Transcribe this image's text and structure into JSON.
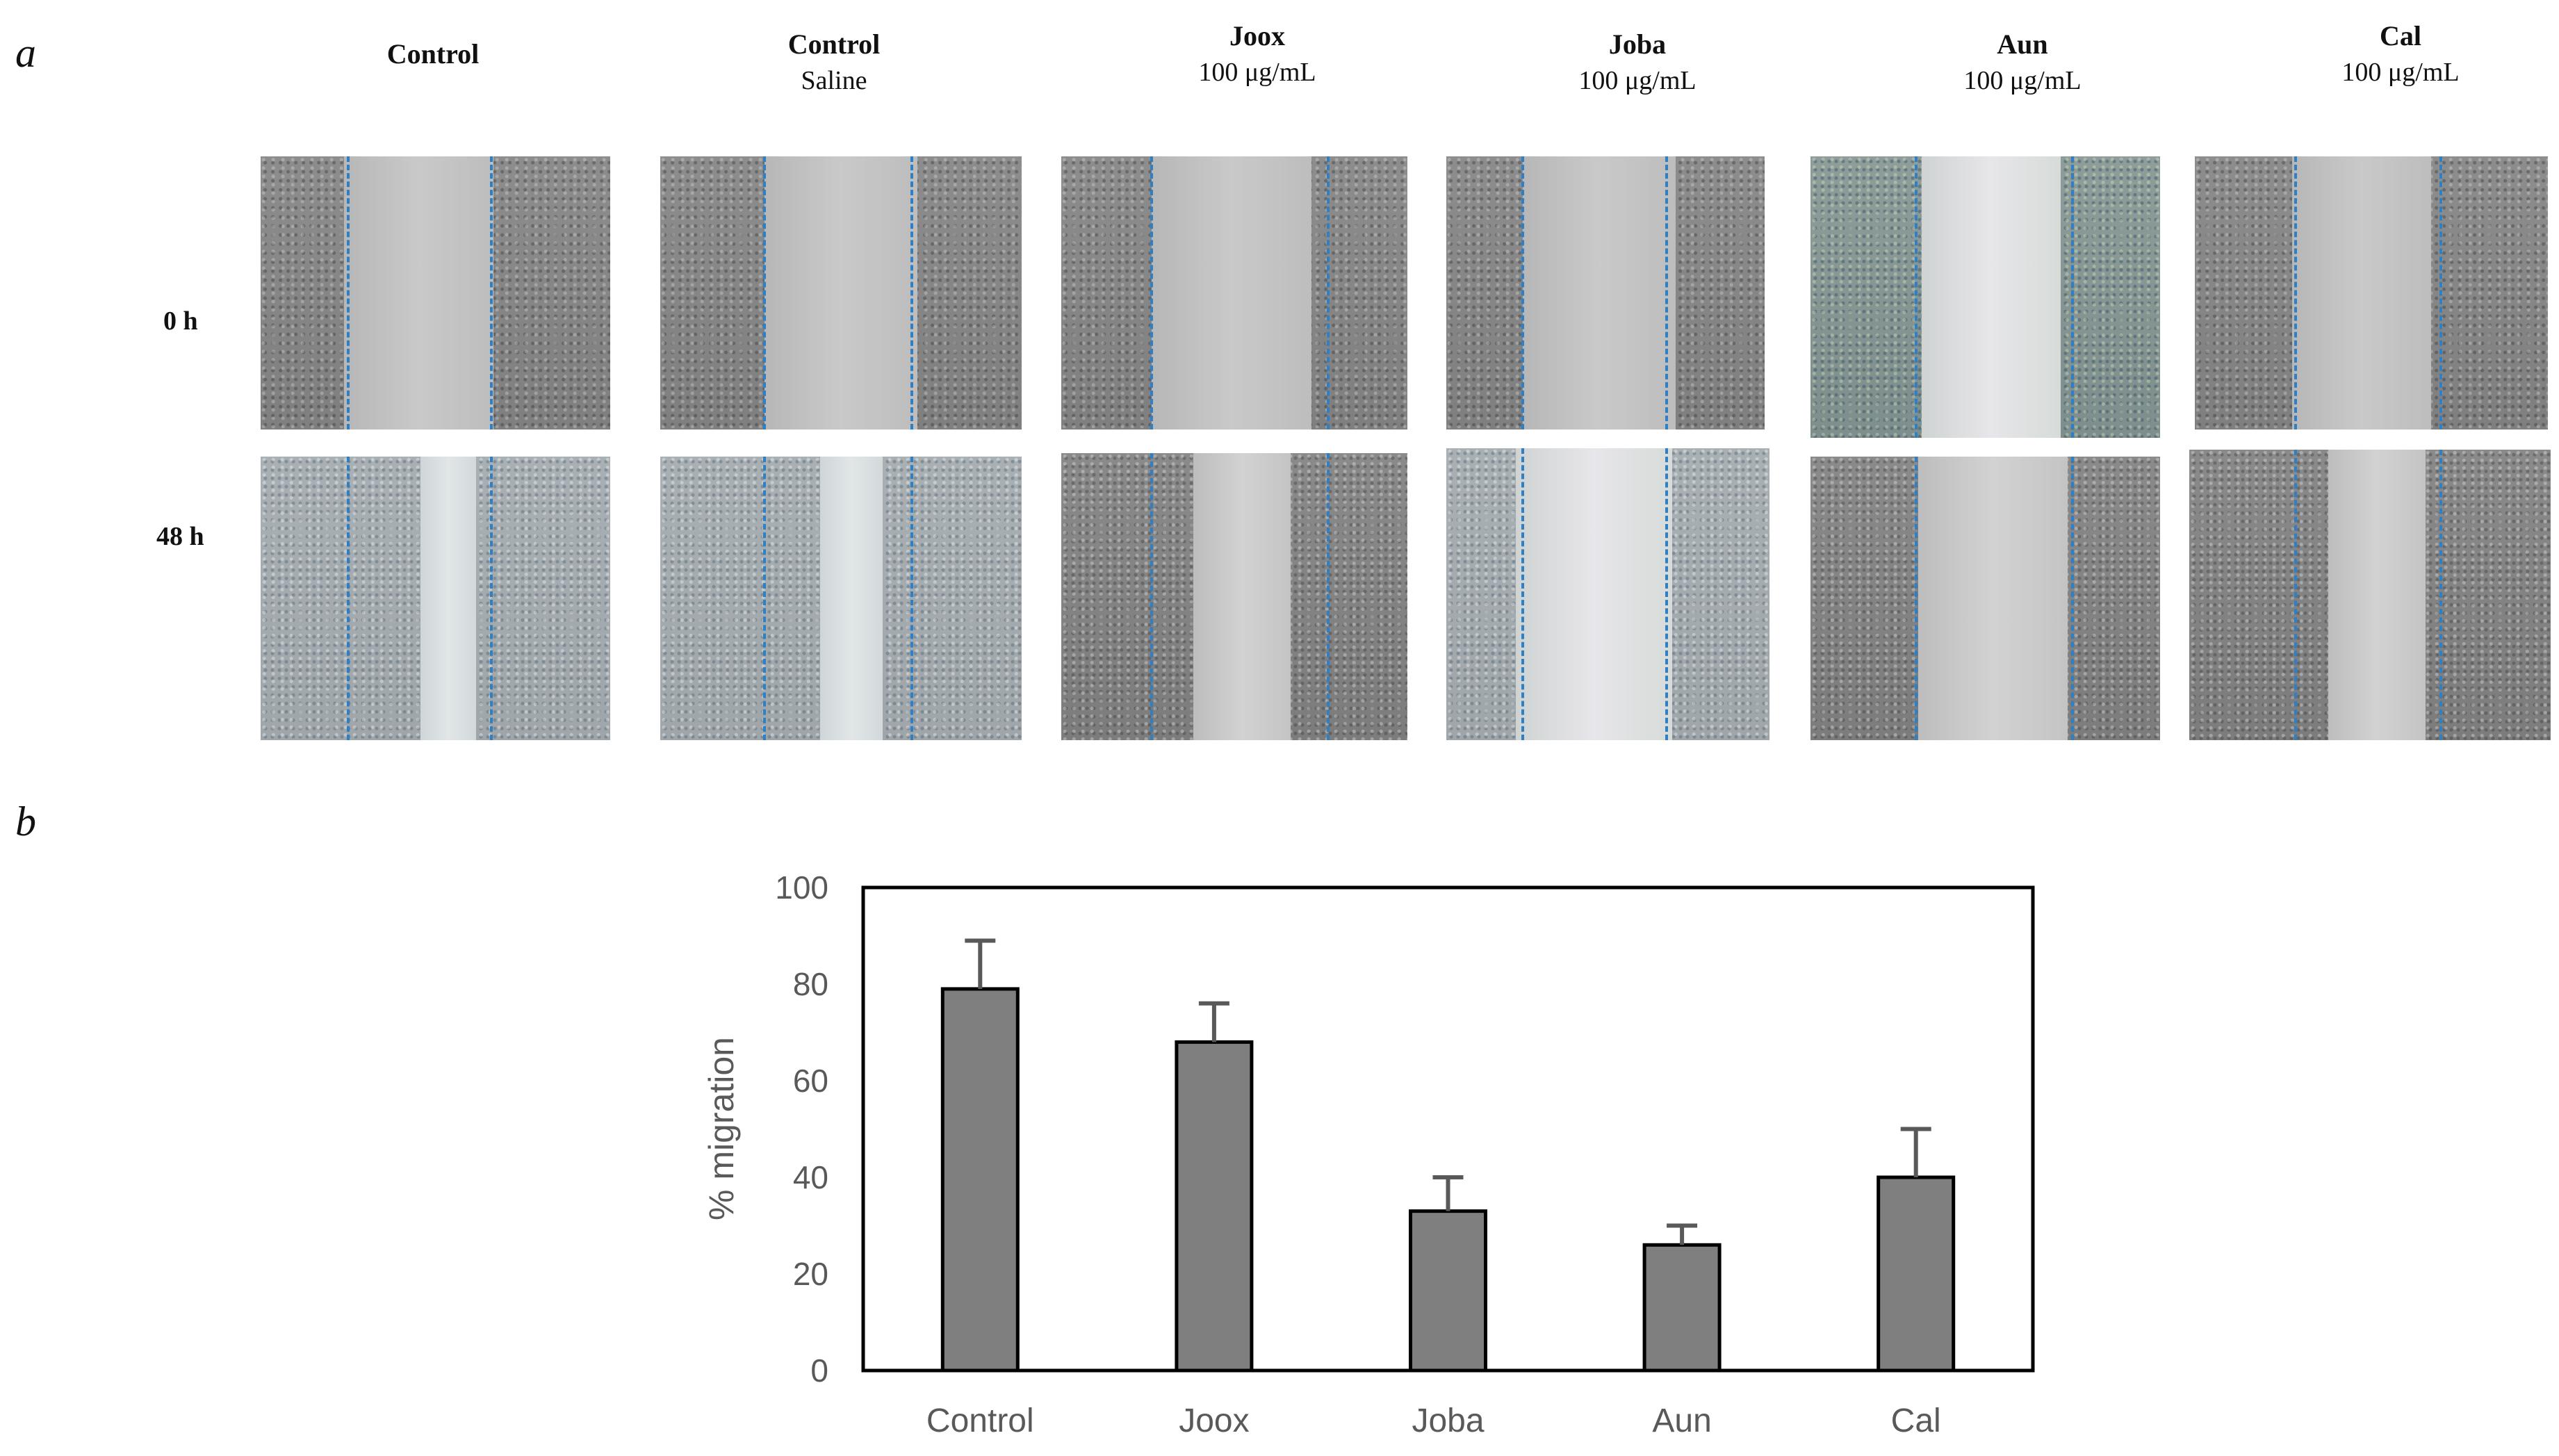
{
  "panel_labels": {
    "a": "a",
    "b": "b"
  },
  "panel_a": {
    "columns": [
      {
        "title": "Control",
        "subtitle": ""
      },
      {
        "title": "Control",
        "subtitle": "Saline"
      },
      {
        "title": "Joox",
        "subtitle": "100 μg/mL"
      },
      {
        "title": "Joba",
        "subtitle": "100 μg/mL"
      },
      {
        "title": "Aun",
        "subtitle": "100 μg/mL"
      },
      {
        "title": "Cal",
        "subtitle": "100 μg/mL"
      }
    ],
    "rows": [
      {
        "label": "0 h"
      },
      {
        "label": "48 h"
      }
    ],
    "guide_line_color": "#2f7fc4"
  },
  "chart_data": {
    "type": "bar",
    "categories": [
      "Control",
      "Joox",
      "Joba",
      "Aun",
      "Cal"
    ],
    "values": [
      79,
      68,
      33,
      26,
      40
    ],
    "error_bars": [
      10,
      8,
      7,
      4,
      10
    ],
    "title": "",
    "xlabel": "",
    "ylabel": "% migration",
    "ylim": [
      0,
      100
    ],
    "yticks": [
      0,
      20,
      40,
      60,
      80,
      100
    ],
    "bar_color": "#7f7f7f",
    "grid": false
  }
}
